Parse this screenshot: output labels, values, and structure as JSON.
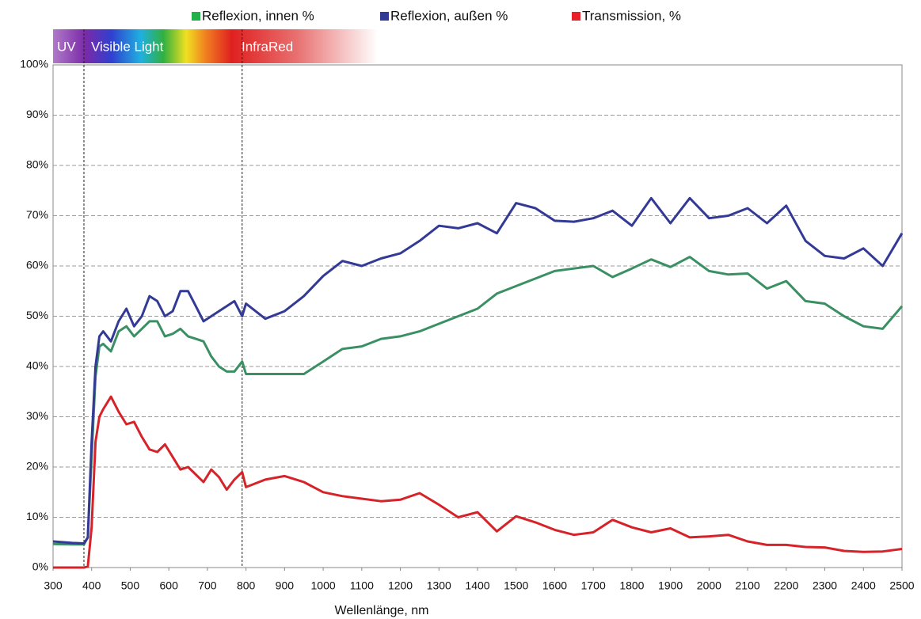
{
  "chart_data": {
    "type": "line",
    "x_label": "Wellenlänge, nm",
    "bands": [
      "UV",
      "Visible Light",
      "InfraRed"
    ],
    "vlines": [
      380,
      790
    ],
    "x": [
      300,
      350,
      380,
      390,
      400,
      410,
      420,
      430,
      450,
      470,
      490,
      510,
      530,
      550,
      570,
      590,
      610,
      630,
      650,
      670,
      690,
      710,
      730,
      750,
      770,
      790,
      800,
      850,
      900,
      950,
      1000,
      1050,
      1100,
      1150,
      1200,
      1250,
      1300,
      1350,
      1400,
      1450,
      1500,
      1550,
      1600,
      1650,
      1700,
      1750,
      1800,
      1850,
      1900,
      1950,
      2000,
      2050,
      2100,
      2150,
      2200,
      2250,
      2300,
      2350,
      2400,
      2450,
      2500
    ],
    "series": [
      {
        "name": "Reflexion, innen %",
        "color": "#3a8f63",
        "legend_color": "#22b04b",
        "values": [
          4.7,
          4.6,
          4.6,
          6,
          22,
          38,
          44,
          44.5,
          43,
          47,
          48,
          46,
          47.5,
          49,
          49,
          46,
          46.5,
          47.5,
          46,
          45.5,
          45,
          42,
          40,
          39,
          39,
          41,
          38.5,
          38.5,
          38.5,
          38.5,
          41,
          43.5,
          44,
          45.5,
          46,
          47,
          48.5,
          50,
          51.5,
          54.5,
          56,
          57.5,
          59,
          59.5,
          60,
          57.8,
          59.5,
          61.3,
          59.8,
          61.8,
          59,
          58.3,
          58.5,
          55.5,
          57,
          53,
          52.5,
          50,
          48,
          47.5,
          52
        ]
      },
      {
        "name": "Reflexion, außen %",
        "color": "#333a96",
        "legend_color": "#333a96",
        "values": [
          5.2,
          4.9,
          4.8,
          6,
          25,
          40,
          46,
          47,
          45,
          49,
          51.5,
          48,
          50,
          54,
          53,
          50,
          51,
          55,
          55,
          52,
          49,
          50,
          51,
          52,
          53,
          50,
          52.5,
          49.5,
          51,
          54,
          58,
          61,
          60,
          61.5,
          62.5,
          65,
          68,
          67.5,
          68.5,
          66.5,
          72.5,
          71.5,
          69,
          68.8,
          69.5,
          71,
          68,
          73.5,
          68.5,
          73.5,
          69.5,
          70,
          71.5,
          68.5,
          72,
          65,
          62,
          61.5,
          63.5,
          60,
          66.5
        ]
      },
      {
        "name": "Transmission, %",
        "color": "#d6232a",
        "legend_color": "#e8202a",
        "values": [
          0,
          0,
          0,
          0.2,
          8,
          25,
          30,
          31.5,
          34,
          31,
          28.5,
          29,
          26,
          23.5,
          23,
          24.5,
          22,
          19.5,
          20,
          18.5,
          17,
          19.5,
          18,
          15.5,
          17.5,
          19,
          16,
          17.5,
          18.2,
          17,
          15,
          14.2,
          13.7,
          13.2,
          13.5,
          14.8,
          12.5,
          10,
          11,
          7.2,
          10.2,
          9,
          7.5,
          6.5,
          7,
          9.5,
          8,
          7,
          7.8,
          6,
          6.2,
          6.5,
          5.2,
          4.5,
          4.5,
          4.1,
          4,
          3.3,
          3.1,
          3.2,
          3.7
        ]
      }
    ],
    "xlim": [
      300,
      2500
    ],
    "xticks": [
      300,
      400,
      500,
      600,
      700,
      800,
      900,
      1000,
      1100,
      1200,
      1300,
      1400,
      1500,
      1600,
      1700,
      1800,
      1900,
      2000,
      2100,
      2200,
      2300,
      2400,
      2500
    ],
    "ylim": [
      0,
      100
    ],
    "yticks": [
      {
        "value": 0,
        "label": "0%"
      },
      {
        "value": 10,
        "label": "10%"
      },
      {
        "value": 20,
        "label": "20%"
      },
      {
        "value": 30,
        "label": "30%"
      },
      {
        "value": 40,
        "label": "40%"
      },
      {
        "value": 50,
        "label": "50%"
      },
      {
        "value": 60,
        "label": "60%"
      },
      {
        "value": 70,
        "label": "70%"
      },
      {
        "value": 80,
        "label": "80%"
      },
      {
        "value": 90,
        "label": "90%"
      },
      {
        "value": 100,
        "label": "100%"
      }
    ],
    "grid": true
  }
}
